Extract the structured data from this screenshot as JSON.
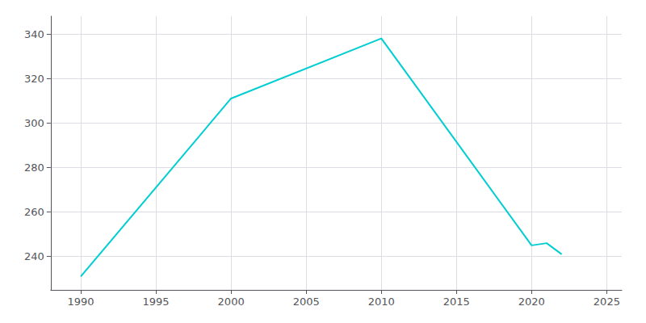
{
  "chart_data": {
    "type": "line",
    "x": [
      1990,
      2000,
      2010,
      2020,
      2021,
      2022
    ],
    "values": [
      231,
      311,
      338,
      245,
      246,
      241
    ],
    "color": "#00CED1",
    "xlim": [
      1988,
      2026
    ],
    "ylim": [
      225,
      348
    ],
    "xticks": [
      1990,
      1995,
      2000,
      2005,
      2010,
      2015,
      2020,
      2025
    ],
    "yticks": [
      240,
      260,
      280,
      300,
      320,
      340
    ],
    "grid": true
  }
}
